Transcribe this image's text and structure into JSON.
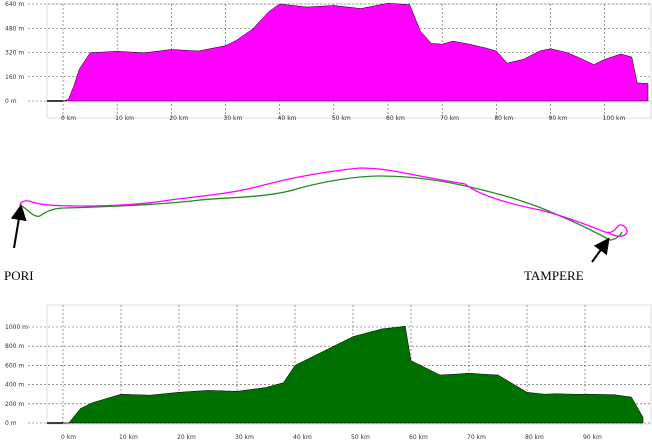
{
  "chart_data": [
    {
      "type": "area",
      "series": [
        {
          "color": "#ff00ff",
          "x": [
            0,
            1,
            2,
            3,
            5,
            10,
            15,
            20,
            25,
            30,
            32,
            35,
            38,
            40,
            45,
            50,
            55,
            60,
            62,
            64,
            66,
            68,
            70,
            72,
            75,
            78,
            80,
            82,
            85,
            88,
            90,
            93,
            95,
            98,
            100,
            103,
            105,
            106,
            108
          ],
          "y": [
            0,
            10,
            100,
            210,
            318,
            328,
            318,
            340,
            330,
            365,
            400,
            475,
            590,
            640,
            620,
            630,
            610,
            645,
            640,
            635,
            460,
            380,
            375,
            395,
            375,
            350,
            330,
            250,
            275,
            330,
            345,
            320,
            290,
            240,
            275,
            310,
            290,
            120,
            115
          ]
        }
      ],
      "xlim": [
        0,
        108
      ],
      "ylim": [
        0,
        640
      ],
      "x_tick_labels": [
        "0 km",
        "10 km",
        "20 km",
        "30 km",
        "40 km",
        "50 km",
        "60 km",
        "70 km",
        "80 km",
        "90 km",
        "100 km"
      ],
      "y_tick_labels": [
        "0 m",
        "160 m",
        "320 m",
        "480 m",
        "640 m"
      ],
      "grid": true
    },
    {
      "type": "area",
      "series": [
        {
          "color": "#007000",
          "x": [
            0,
            1,
            3,
            5,
            10,
            15,
            20,
            25,
            30,
            35,
            38,
            40,
            45,
            50,
            55,
            58,
            59,
            60,
            62,
            65,
            68,
            70,
            72,
            75,
            80,
            83,
            85,
            88,
            90,
            95,
            98,
            100
          ],
          "y": [
            0,
            0,
            150,
            210,
            300,
            290,
            320,
            340,
            330,
            370,
            420,
            600,
            750,
            900,
            980,
            1000,
            1010,
            650,
            590,
            500,
            510,
            520,
            510,
            500,
            320,
            300,
            305,
            300,
            300,
            295,
            270,
            60
          ]
        }
      ],
      "xlim": [
        0,
        100
      ],
      "ylim": [
        0,
        1000
      ],
      "x_tick_labels": [
        "0 km",
        "10 km",
        "20 km",
        "30 km",
        "40 km",
        "50 km",
        "60 km",
        "70 km",
        "80 km",
        "90 km"
      ],
      "y_tick_labels": [
        "0 m",
        "200 m",
        "400 m",
        "600 m",
        "800 m",
        "1000 m"
      ],
      "grid": true
    }
  ],
  "route_map": {
    "start_label": "PORI",
    "end_label": "TAMPERE",
    "route_colors": [
      "#ff00ff",
      "#238b23"
    ]
  }
}
